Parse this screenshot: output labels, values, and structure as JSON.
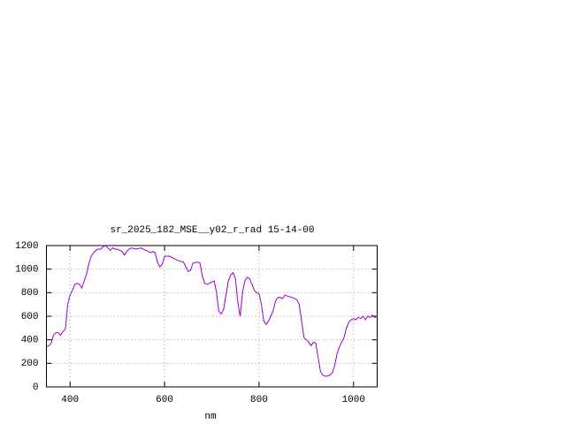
{
  "chart_data": {
    "type": "line",
    "title": "sr_2025_182_MSE__y02_r_rad 15-14-00",
    "x_label": "nm",
    "x": [
      350,
      355,
      360,
      365,
      370,
      375,
      380,
      385,
      390,
      395,
      400,
      405,
      410,
      415,
      420,
      425,
      430,
      435,
      440,
      445,
      450,
      455,
      460,
      465,
      470,
      475,
      480,
      485,
      490,
      495,
      500,
      505,
      510,
      515,
      520,
      525,
      530,
      540,
      550,
      560,
      570,
      575,
      580,
      585,
      590,
      595,
      600,
      610,
      620,
      630,
      640,
      645,
      650,
      655,
      660,
      670,
      675,
      680,
      685,
      690,
      700,
      705,
      710,
      715,
      720,
      725,
      730,
      735,
      740,
      745,
      750,
      755,
      760,
      765,
      770,
      775,
      780,
      785,
      790,
      795,
      800,
      805,
      810,
      815,
      820,
      825,
      830,
      835,
      840,
      845,
      850,
      855,
      860,
      870,
      880,
      885,
      890,
      895,
      900,
      905,
      910,
      915,
      920,
      925,
      930,
      935,
      940,
      945,
      950,
      955,
      960,
      965,
      970,
      975,
      980,
      985,
      990,
      995,
      1000,
      1005,
      1010,
      1015,
      1020,
      1025,
      1030,
      1035,
      1040,
      1045,
      1050
    ],
    "series": [
      {
        "color": "#9400d3",
        "values": [
          340,
          350,
          370,
          440,
          460,
          460,
          440,
          470,
          490,
          700,
          780,
          820,
          870,
          880,
          870,
          840,
          900,
          960,
          1050,
          1110,
          1140,
          1160,
          1170,
          1170,
          1190,
          1200,
          1180,
          1160,
          1180,
          1170,
          1170,
          1160,
          1150,
          1120,
          1150,
          1170,
          1180,
          1170,
          1180,
          1160,
          1140,
          1150,
          1140,
          1060,
          1020,
          1040,
          1110,
          1110,
          1090,
          1070,
          1060,
          1020,
          980,
          990,
          1050,
          1060,
          1050,
          940,
          880,
          870,
          890,
          900,
          800,
          640,
          620,
          660,
          780,
          900,
          950,
          970,
          920,
          720,
          600,
          800,
          900,
          930,
          920,
          870,
          820,
          800,
          790,
          700,
          560,
          530,
          560,
          600,
          650,
          730,
          760,
          760,
          750,
          780,
          770,
          760,
          740,
          700,
          560,
          420,
          400,
          380,
          350,
          380,
          370,
          250,
          130,
          100,
          90,
          95,
          100,
          120,
          180,
          280,
          340,
          380,
          420,
          500,
          550,
          570,
          580,
          570,
          590,
          580,
          600,
          570,
          600,
          590,
          610,
          590,
          600
        ]
      }
    ],
    "xlim": [
      350,
      1050
    ],
    "ylim": [
      0,
      1200
    ],
    "xticks": [
      400,
      600,
      800,
      1000
    ],
    "yticks": [
      0,
      200,
      400,
      600,
      800,
      1000,
      1200
    ],
    "grid": true
  }
}
